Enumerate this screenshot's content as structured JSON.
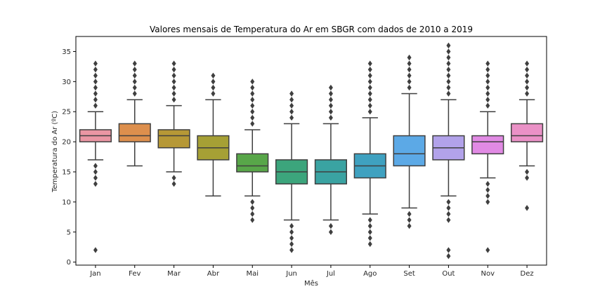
{
  "chart_data": {
    "type": "box",
    "title": "Valores mensais de Temperatura do Ar em SBGR com dados de 2010 a 2019",
    "xlabel": "Mês",
    "ylabel": "Temperatura do Ar (ºC)",
    "ylim": [
      -0.5,
      37.5
    ],
    "yticks": [
      0,
      5,
      10,
      15,
      20,
      25,
      30,
      35
    ],
    "grid": false,
    "legend": "none",
    "categories": [
      "Jan",
      "Fev",
      "Mar",
      "Abr",
      "Mai",
      "Jun",
      "Jul",
      "Ago",
      "Set",
      "Out",
      "Nov",
      "Dez"
    ],
    "colors": [
      "#ea96a3",
      "#dd8f4d",
      "#b69836",
      "#a6a035",
      "#58a649",
      "#3ca57c",
      "#3aa3a2",
      "#3fa1c0",
      "#5ca9e6",
      "#b2a2ea",
      "#e18ae4",
      "#ea91c6"
    ],
    "boxes": [
      {
        "whislo": 17,
        "q1": 20,
        "med": 21,
        "q3": 22,
        "whishi": 25,
        "fliers": [
          2,
          13,
          14,
          15,
          16,
          26,
          27,
          28,
          29,
          30,
          31,
          32,
          33
        ]
      },
      {
        "whislo": 16,
        "q1": 20,
        "med": 21,
        "q3": 23,
        "whishi": 27,
        "fliers": [
          28,
          29,
          30,
          31,
          32,
          33
        ]
      },
      {
        "whislo": 15,
        "q1": 19,
        "med": 21,
        "q3": 22,
        "whishi": 26,
        "fliers": [
          13,
          14,
          27,
          28,
          29,
          30,
          31,
          32,
          33
        ]
      },
      {
        "whislo": 11,
        "q1": 17,
        "med": 19,
        "q3": 21,
        "whishi": 27,
        "fliers": [
          28,
          29,
          30,
          31
        ]
      },
      {
        "whislo": 11,
        "q1": 15,
        "med": 16,
        "q3": 18,
        "whishi": 22,
        "fliers": [
          7,
          8,
          9,
          10,
          23,
          24,
          25,
          26,
          27,
          28,
          29,
          30
        ]
      },
      {
        "whislo": 7,
        "q1": 13,
        "med": 15,
        "q3": 17,
        "whishi": 23,
        "fliers": [
          2,
          3,
          4,
          5,
          6,
          24,
          25,
          26,
          27,
          28
        ]
      },
      {
        "whislo": 7,
        "q1": 13,
        "med": 15,
        "q3": 17,
        "whishi": 23,
        "fliers": [
          5,
          6,
          24,
          25,
          26,
          27,
          28,
          29
        ]
      },
      {
        "whislo": 8,
        "q1": 14,
        "med": 16,
        "q3": 18,
        "whishi": 24,
        "fliers": [
          3,
          4,
          5,
          6,
          7,
          25,
          26,
          27,
          28,
          29,
          30,
          31,
          32,
          33
        ]
      },
      {
        "whislo": 9,
        "q1": 16,
        "med": 18,
        "q3": 21,
        "whishi": 28,
        "fliers": [
          6,
          7,
          8,
          29,
          30,
          31,
          32,
          33,
          34
        ]
      },
      {
        "whislo": 11,
        "q1": 17,
        "med": 19,
        "q3": 21,
        "whishi": 27,
        "fliers": [
          1,
          2,
          7,
          8,
          9,
          10,
          28,
          29,
          30,
          31,
          32,
          33,
          34,
          35,
          36
        ]
      },
      {
        "whislo": 14,
        "q1": 18,
        "med": 20,
        "q3": 21,
        "whishi": 25,
        "fliers": [
          2,
          10,
          11,
          12,
          13,
          26,
          27,
          28,
          29,
          30,
          31,
          32,
          33
        ]
      },
      {
        "whislo": 16,
        "q1": 20,
        "med": 21,
        "q3": 23,
        "whishi": 27,
        "fliers": [
          9,
          14,
          15,
          28,
          29,
          30,
          31,
          32,
          33
        ]
      }
    ]
  }
}
